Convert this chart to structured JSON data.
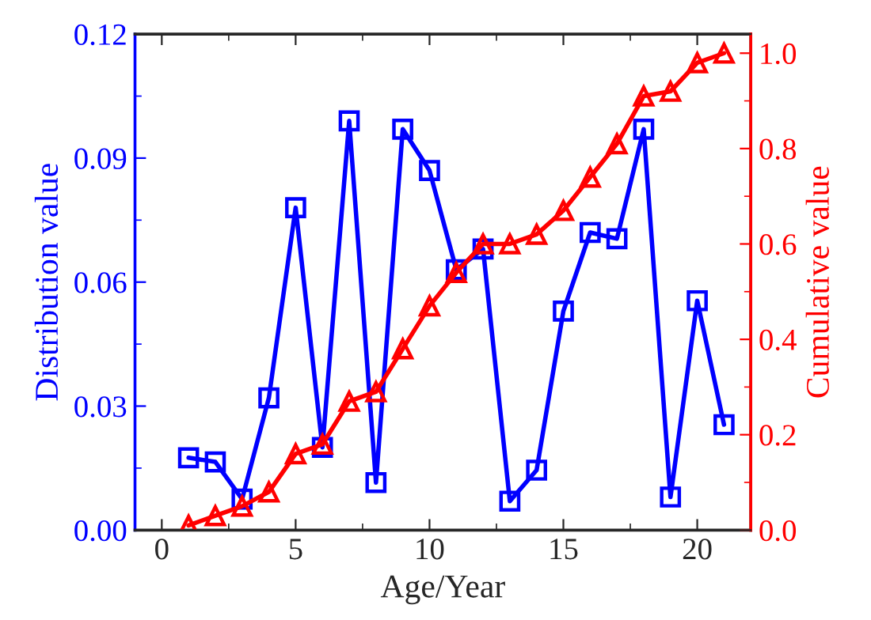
{
  "chart_data": {
    "type": "line",
    "xlabel": "Age/Year",
    "ylabel": "Distribution value",
    "y2label": "Cumulative value",
    "x": [
      1,
      2,
      3,
      4,
      5,
      6,
      7,
      8,
      9,
      10,
      11,
      12,
      13,
      14,
      15,
      16,
      17,
      18,
      19,
      20,
      21
    ],
    "series": [
      {
        "name": null,
        "color": "#0000ff",
        "marker": "square",
        "values": [
          0.0175,
          0.0165,
          0.0075,
          0.032,
          0.078,
          0.02,
          0.099,
          0.0115,
          0.097,
          0.087,
          0.063,
          0.068,
          0.007,
          0.0145,
          0.053,
          0.072,
          0.0705,
          0.097,
          0.008,
          0.0555,
          0.0255
        ]
      },
      {
        "name": null,
        "color": "#ff0000",
        "marker": "triangle",
        "axis": "y2",
        "values": [
          0.01,
          0.03,
          0.05,
          0.08,
          0.16,
          0.18,
          0.27,
          0.29,
          0.38,
          0.47,
          0.54,
          0.6,
          0.6,
          0.62,
          0.67,
          0.74,
          0.81,
          0.91,
          0.92,
          0.98,
          1.0
        ]
      }
    ],
    "xlim": [
      -1,
      22
    ],
    "xticks": [
      0,
      {
        "value": 2.5,
        "label": null
      },
      5,
      {
        "value": 7.5,
        "label": null
      },
      10,
      {
        "value": 12.5,
        "label": null
      },
      15,
      {
        "value": 17.5,
        "label": null
      },
      20
    ],
    "ylim": [
      0,
      0.12
    ],
    "yticks": [
      "0.00",
      {
        "value": 0.015,
        "label": null
      },
      {
        "value": 0.03,
        "label": "0.03"
      },
      {
        "value": 0.045,
        "label": null
      },
      {
        "value": 0.06,
        "label": "0.06"
      },
      {
        "value": 0.075,
        "label": null
      },
      {
        "value": 0.09,
        "label": "0.09"
      },
      {
        "value": 0.105,
        "label": null
      },
      {
        "value": 0.12,
        "label": "0.12"
      }
    ],
    "y2lim": [
      0,
      1.04
    ],
    "y2ticks": [
      {
        "value": 0,
        "label": "0.0"
      },
      {
        "value": 0.1,
        "label": null
      },
      {
        "value": 0.2,
        "label": "0.2"
      },
      {
        "value": 0.3,
        "label": null
      },
      {
        "value": 0.4,
        "label": "0.4"
      },
      {
        "value": 0.5,
        "label": null
      },
      {
        "value": 0.6,
        "label": "0.6"
      },
      {
        "value": 0.7,
        "label": null
      },
      {
        "value": 0.8,
        "label": "0.8"
      },
      {
        "value": 0.9,
        "label": null
      },
      {
        "value": 1.0,
        "label": "1.0"
      }
    ],
    "grid": false,
    "legend": false,
    "line_style": "solid"
  }
}
